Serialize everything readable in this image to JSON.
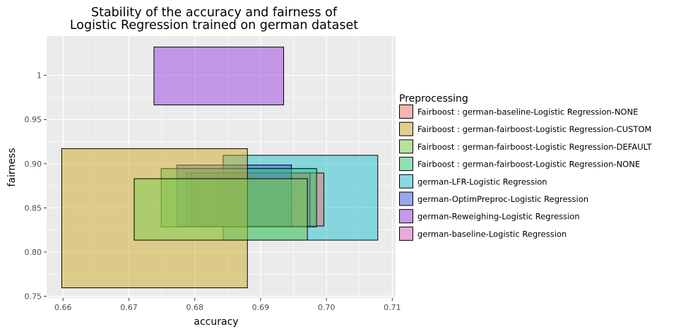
{
  "chart_data": {
    "type": "rect",
    "title_lines": [
      "Stability of the accuracy and fairness of",
      "Logistic Regression trained on german dataset"
    ],
    "xlabel": "accuracy",
    "ylabel": "fairness",
    "xlim": [
      0.6575,
      0.7105
    ],
    "ylim": [
      0.748,
      1.0445
    ],
    "x_ticks": [
      0.66,
      0.67,
      0.68,
      0.69,
      0.7,
      0.71
    ],
    "x_tick_labels": [
      "0.66",
      "0.67",
      "0.68",
      "0.69",
      "0.70",
      "0.71"
    ],
    "y_ticks": [
      0.75,
      0.8,
      0.85,
      0.9,
      0.95,
      1.0
    ],
    "y_tick_labels": [
      "0.75",
      "0.80",
      "0.85",
      "0.90",
      "0.95",
      "1"
    ],
    "grid": true,
    "legend_title": "Preprocessing",
    "legend_position": "right",
    "series": [
      {
        "name": "Fairboost : german-baseline-Logistic Regression-NONE",
        "color": "#F8766D",
        "x": [
          0.6788,
          0.6996
        ],
        "y": [
          0.8295,
          0.8895
        ]
      },
      {
        "name": "Fairboost : german-fairboost-Logistic Regression-CUSTOM",
        "color": "#CDAA28",
        "x": [
          0.6598,
          0.688
        ],
        "y": [
          0.7595,
          0.917
        ]
      },
      {
        "name": "Fairboost : german-fairboost-Logistic Regression-DEFAULT",
        "color": "#7CCD50",
        "x": [
          0.6708,
          0.6971
        ],
        "y": [
          0.8135,
          0.883
        ]
      },
      {
        "name": "Fairboost : german-fairboost-Logistic Regression-NONE",
        "color": "#2ECC71",
        "x": [
          0.6749,
          0.6985
        ],
        "y": [
          0.8285,
          0.8945
        ]
      },
      {
        "name": "german-LFR-Logistic Regression",
        "color": "#1FC0CF",
        "x": [
          0.6843,
          0.7078
        ],
        "y": [
          0.8135,
          0.9095
        ]
      },
      {
        "name": "german-OptimPreproc-Logistic Regression",
        "color": "#3F5BE0",
        "x": [
          0.6773,
          0.6947
        ],
        "y": [
          0.829,
          0.8985
        ]
      },
      {
        "name": "german-Reweighing-Logistic Regression",
        "color": "#9B40E0",
        "x": [
          0.6738,
          0.6935
        ],
        "y": [
          0.9665,
          1.032
        ]
      },
      {
        "name": "german-baseline-Logistic Regression",
        "color": "#E05FBE",
        "x": [
          0.6795,
          0.6975
        ],
        "y": [
          0.8295,
          0.8895
        ]
      }
    ],
    "draw_order": [
      6,
      4,
      0,
      7,
      5,
      3,
      1,
      2
    ]
  }
}
